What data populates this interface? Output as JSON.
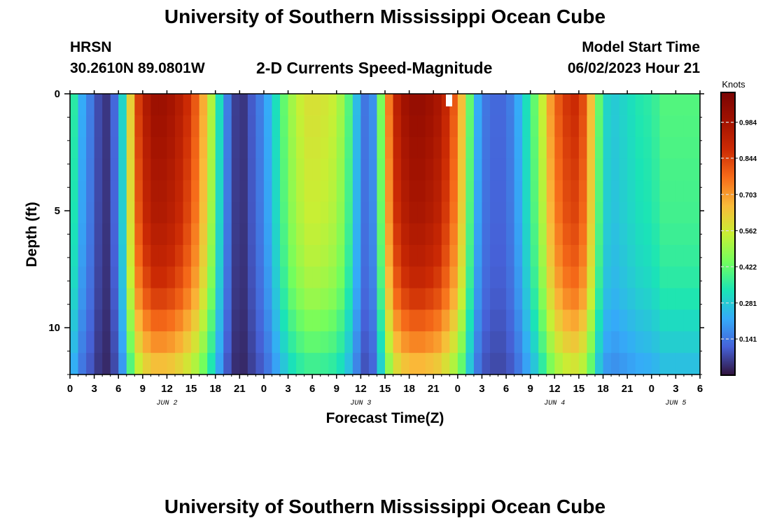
{
  "header": {
    "title": "University of Southern Mississippi Ocean Cube",
    "station": "HRSN",
    "coords": "30.2610N  89.0801W",
    "subtitle": "2-D Currents Speed-Magnitude",
    "model_start_label": "Model Start Time",
    "model_start_value": "06/02/2023 Hour 21"
  },
  "footer": {
    "title": "University of Southern Mississippi Ocean Cube"
  },
  "chart_data": {
    "type": "heatmap",
    "title": "2-D Currents Speed-Magnitude",
    "xlabel": "Forecast Time(Z)",
    "ylabel": "Depth (ft)",
    "x_tick_labels": [
      "0",
      "3",
      "6",
      "9",
      "12",
      "15",
      "18",
      "21",
      "0",
      "3",
      "6",
      "9",
      "12",
      "15",
      "18",
      "21",
      "0",
      "3",
      "6",
      "9",
      "12",
      "15",
      "18",
      "21",
      "0",
      "3",
      "6"
    ],
    "x_date_labels": [
      {
        "label": "JUN 2",
        "hour_index": 12
      },
      {
        "label": "JUN 3",
        "hour_index": 36
      },
      {
        "label": "JUN 4",
        "hour_index": 60
      },
      {
        "label": "JUN 5",
        "hour_index": 75
      }
    ],
    "x_range_hours": [
      0,
      78
    ],
    "y_tick_labels": [
      "0",
      "5",
      "10"
    ],
    "y_ticks": [
      0,
      5,
      10
    ],
    "y_range_ft": [
      0,
      12
    ],
    "colorbar": {
      "title": "Knots",
      "range": [
        0,
        1.1
      ],
      "ticks": [
        0.141,
        0.281,
        0.422,
        0.562,
        0.703,
        0.844,
        0.984
      ],
      "tick_labels": [
        "0.141",
        "0.281",
        "0.422",
        "0.562",
        "0.703",
        "0.844",
        "0.984"
      ],
      "colormap": "turbo"
    },
    "surface_profile_knots": {
      "hours": [
        0,
        1,
        2,
        3,
        4,
        5,
        6,
        7,
        8,
        9,
        10,
        11,
        12,
        13,
        14,
        15,
        16,
        17,
        18,
        19,
        20,
        21,
        22,
        23,
        24,
        25,
        26,
        27,
        28,
        29,
        30,
        31,
        32,
        33,
        34,
        35,
        36,
        37,
        38,
        39,
        40,
        41,
        42,
        43,
        44,
        45,
        46,
        47,
        48,
        49,
        50,
        51,
        52,
        53,
        54,
        55,
        56,
        57,
        58,
        59,
        60,
        61,
        62,
        63,
        64,
        65,
        66,
        67,
        68,
        69,
        70,
        71,
        72,
        73,
        74,
        75,
        76,
        77,
        78
      ],
      "values": [
        0.35,
        0.22,
        0.15,
        0.08,
        0.05,
        0.12,
        0.3,
        0.62,
        0.85,
        0.95,
        1.0,
        1.0,
        0.98,
        0.94,
        0.88,
        0.8,
        0.68,
        0.52,
        0.32,
        0.15,
        0.06,
        0.05,
        0.1,
        0.15,
        0.22,
        0.32,
        0.42,
        0.5,
        0.55,
        0.58,
        0.58,
        0.57,
        0.55,
        0.5,
        0.4,
        0.25,
        0.14,
        0.18,
        0.45,
        0.75,
        0.92,
        0.99,
        1.02,
        1.02,
        1.0,
        0.97,
        0.9,
        0.8,
        0.65,
        0.42,
        0.22,
        0.14,
        0.12,
        0.12,
        0.15,
        0.22,
        0.32,
        0.42,
        0.55,
        0.7,
        0.8,
        0.86,
        0.88,
        0.82,
        0.65,
        0.42,
        0.3,
        0.28,
        0.3,
        0.32,
        0.34,
        0.35,
        0.37,
        0.4,
        0.4,
        0.4,
        0.4,
        0.4,
        0.4
      ]
    },
    "depth_attenuation": [
      1.0,
      0.99,
      0.98,
      0.97,
      0.96,
      0.95,
      0.93,
      0.91,
      0.88,
      0.84,
      0.78,
      0.72,
      0.65
    ]
  }
}
